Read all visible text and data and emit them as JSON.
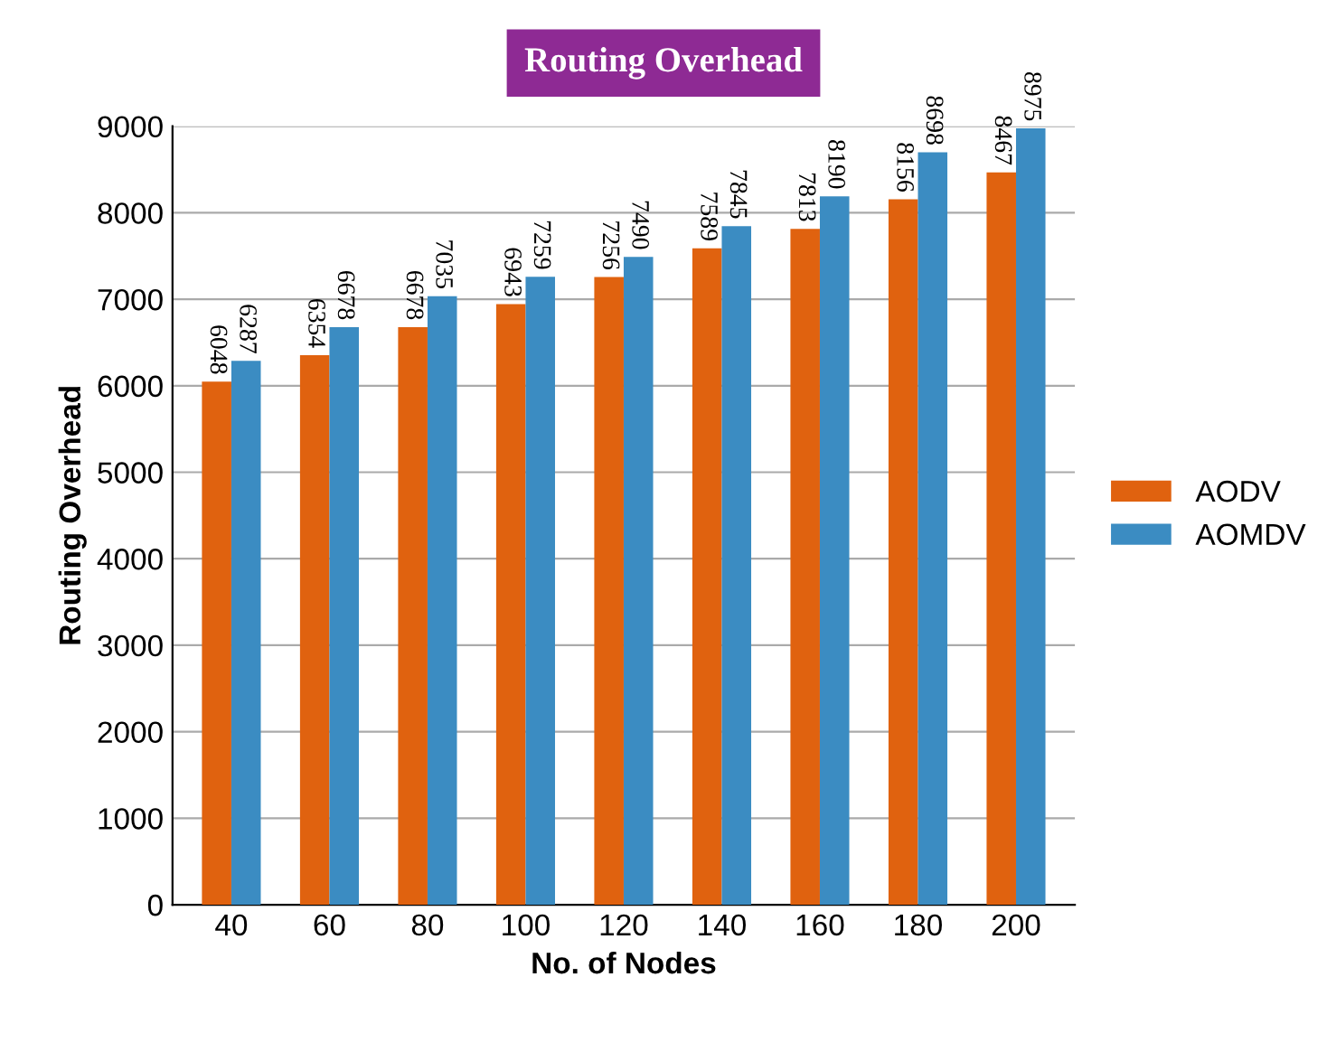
{
  "chart_data": {
    "type": "bar",
    "title": "Routing Overhead",
    "xlabel": "No. of Nodes",
    "ylabel": "Routing Overhead",
    "categories": [
      "40",
      "60",
      "80",
      "100",
      "120",
      "140",
      "160",
      "180",
      "200"
    ],
    "series": [
      {
        "name": "AODV",
        "color": "#e0620f",
        "values": [
          6048,
          6354,
          6678,
          6943,
          7256,
          7589,
          7813,
          8156,
          8467
        ]
      },
      {
        "name": "AOMDV",
        "color": "#3b8cc2",
        "values": [
          6287,
          6678,
          7035,
          7259,
          7490,
          7845,
          8190,
          8698,
          8975
        ]
      }
    ],
    "ylim": [
      0,
      9000
    ],
    "yticks": [
      0,
      1000,
      2000,
      3000,
      4000,
      5000,
      6000,
      7000,
      8000,
      9000
    ],
    "grid": "y",
    "legend": "right",
    "data_labels": true
  }
}
